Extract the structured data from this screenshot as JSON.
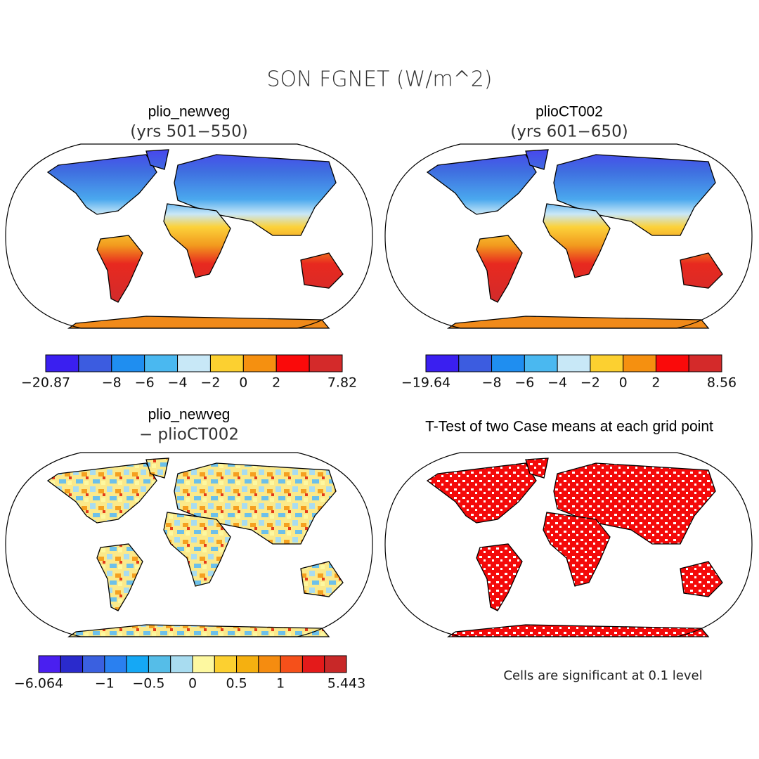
{
  "title": "SON FGNET (W/m^2)",
  "panels": [
    {
      "title": "plio_newveg",
      "subtitle": "(yrs 501−550)",
      "colorbar": {
        "colors": [
          "#3a1ff0",
          "#3c5ce0",
          "#1f8ef0",
          "#4ab8f0",
          "#c8e8f7",
          "#fcd030",
          "#f59010",
          "#fa0a0a",
          "#d42a2a"
        ],
        "labels": [
          "−20.87",
          null,
          "−8",
          "−6",
          "−4",
          "−2",
          "0",
          "2",
          null,
          "7.82"
        ]
      }
    },
    {
      "title": "plioCT002",
      "subtitle": "(yrs 601−650)",
      "colorbar": {
        "colors": [
          "#3a1ff0",
          "#3c5ce0",
          "#1f8ef0",
          "#4ab8f0",
          "#c8e8f7",
          "#fcd030",
          "#f59010",
          "#fa0a0a",
          "#d42a2a"
        ],
        "labels": [
          "−19.64",
          null,
          "−8",
          "−6",
          "−4",
          "−2",
          "0",
          "2",
          null,
          "8.56"
        ]
      }
    },
    {
      "title": "plio_newveg",
      "subtitle": "− plioCT002",
      "colorbar": {
        "colors": [
          "#4a1ff0",
          "#2a2acc",
          "#3a60e0",
          "#2a80f0",
          "#15a8f5",
          "#55bde8",
          "#a8dcf0",
          "#fdf8a0",
          "#fcd030",
          "#f5b010",
          "#f58c10",
          "#f5501a",
          "#e41a1a",
          "#c82828"
        ],
        "labels": [
          "−6.064",
          null,
          null,
          "−1",
          null,
          "−0.5",
          null,
          "0",
          null,
          "0.5",
          null,
          "1",
          null,
          null,
          "5.443"
        ]
      }
    },
    {
      "title": "T-Test of two Case means at each grid point",
      "note": "Cells are significant at 0.1 level"
    }
  ]
}
